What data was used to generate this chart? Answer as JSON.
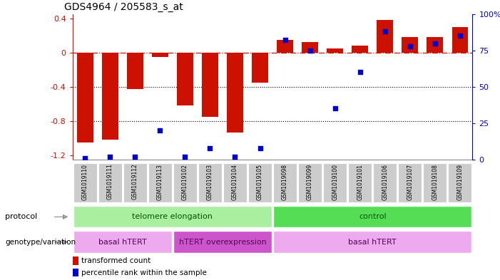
{
  "title": "GDS4964 / 205583_s_at",
  "samples": [
    "GSM1019110",
    "GSM1019111",
    "GSM1019112",
    "GSM1019113",
    "GSM1019102",
    "GSM1019103",
    "GSM1019104",
    "GSM1019105",
    "GSM1019098",
    "GSM1019099",
    "GSM1019100",
    "GSM1019101",
    "GSM1019106",
    "GSM1019107",
    "GSM1019108",
    "GSM1019109"
  ],
  "transformed_count": [
    -1.05,
    -1.02,
    -0.43,
    -0.05,
    -0.62,
    -0.75,
    -0.93,
    -0.35,
    0.15,
    0.12,
    0.05,
    0.08,
    0.38,
    0.18,
    0.18,
    0.3
  ],
  "percentile_rank": [
    1,
    2,
    2,
    20,
    2,
    8,
    2,
    8,
    82,
    75,
    35,
    60,
    88,
    78,
    80,
    85
  ],
  "ylim_left": [
    -1.25,
    0.45
  ],
  "ylim_right": [
    0,
    100
  ],
  "yticks_left": [
    -1.2,
    -0.8,
    -0.4,
    0.0,
    0.4
  ],
  "ytick_labels_left": [
    "-1.2",
    "-0.8",
    "-0.4",
    "0",
    "0.4"
  ],
  "yticks_right": [
    0,
    25,
    50,
    75,
    100
  ],
  "ytick_labels_right": [
    "0",
    "25",
    "50",
    "75",
    "100%"
  ],
  "bar_color": "#cc1100",
  "dot_color": "#0000cc",
  "hline_color": "#cc1100",
  "dotted_line_color": "#000000",
  "protocol_groups": [
    {
      "label": "telomere elongation",
      "start": 0,
      "end": 7,
      "color": "#aaeea0"
    },
    {
      "label": "control",
      "start": 8,
      "end": 15,
      "color": "#55dd55"
    }
  ],
  "genotype_groups": [
    {
      "label": "basal hTERT",
      "start": 0,
      "end": 3,
      "color": "#eeaaee"
    },
    {
      "label": "hTERT overexpression",
      "start": 4,
      "end": 7,
      "color": "#cc55cc"
    },
    {
      "label": "basal hTERT",
      "start": 8,
      "end": 15,
      "color": "#eeaaee"
    }
  ],
  "legend_items": [
    {
      "label": "transformed count",
      "color": "#cc1100"
    },
    {
      "label": "percentile rank within the sample",
      "color": "#0000cc"
    }
  ],
  "left_axis_color": "#cc1100",
  "right_axis_color": "#0000cc",
  "background_plot": "#ffffff"
}
